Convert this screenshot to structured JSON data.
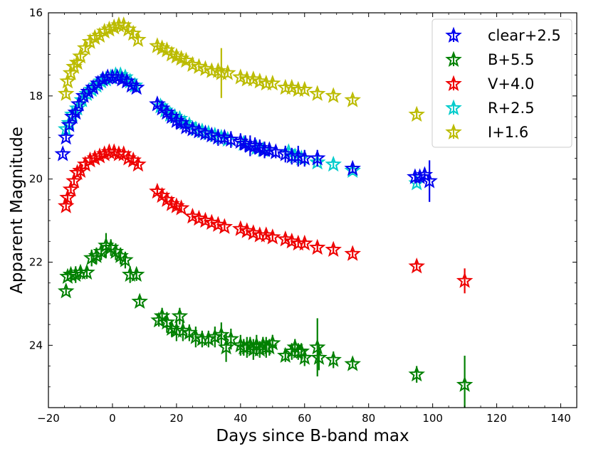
{
  "chart_data": {
    "type": "scatter",
    "title": "",
    "xlabel": "Days since B-band max",
    "ylabel": "Apparent Magnitude",
    "xlim": [
      -20,
      145
    ],
    "ylim": [
      25.5,
      16
    ],
    "y_inverted": true,
    "xticks": [
      -20,
      0,
      20,
      40,
      60,
      80,
      100,
      120,
      140
    ],
    "yticks": [
      16,
      18,
      20,
      22,
      24
    ],
    "grid": false,
    "legend_position": "top-right",
    "marker": "star",
    "series": [
      {
        "name": "clear+2.5",
        "color": "#0000ee",
        "points": [
          [
            -15.5,
            19.4,
            0.08
          ],
          [
            -14.5,
            19.0,
            0.1
          ],
          [
            -13.5,
            18.7,
            0.1
          ],
          [
            -12.5,
            18.5,
            0.1
          ],
          [
            -11.5,
            18.4,
            0.1
          ],
          [
            -10.5,
            18.2,
            0.1
          ],
          [
            -9,
            18.0,
            0.08
          ],
          [
            -7.5,
            17.9,
            0.08
          ],
          [
            -6,
            17.8,
            0.08
          ],
          [
            -4.5,
            17.7,
            0.08
          ],
          [
            -3,
            17.6,
            0.08
          ],
          [
            -1.5,
            17.55,
            0.08
          ],
          [
            0,
            17.55,
            0.08
          ],
          [
            1.5,
            17.55,
            0.08
          ],
          [
            3,
            17.6,
            0.08
          ],
          [
            4.5,
            17.65,
            0.08
          ],
          [
            6,
            17.75,
            0.08
          ],
          [
            7.5,
            17.8,
            0.1
          ],
          [
            14,
            18.2,
            0.1
          ],
          [
            15.5,
            18.3,
            0.1
          ],
          [
            17,
            18.4,
            0.15
          ],
          [
            18.5,
            18.5,
            0.15
          ],
          [
            20,
            18.6,
            0.2
          ],
          [
            21.5,
            18.65,
            0.15
          ],
          [
            23,
            18.75,
            0.15
          ],
          [
            25,
            18.8,
            0.15
          ],
          [
            27,
            18.85,
            0.15
          ],
          [
            29,
            18.9,
            0.15
          ],
          [
            31,
            18.95,
            0.15
          ],
          [
            33,
            19.0,
            0.2
          ],
          [
            35,
            19.0,
            0.15
          ],
          [
            37,
            19.05,
            0.2
          ],
          [
            40,
            19.1,
            0.2
          ],
          [
            41.5,
            19.15,
            0.2
          ],
          [
            43,
            19.2,
            0.25
          ],
          [
            44.5,
            19.2,
            0.2
          ],
          [
            46,
            19.25,
            0.2
          ],
          [
            47.5,
            19.3,
            0.2
          ],
          [
            49,
            19.3,
            0.15
          ],
          [
            51,
            19.35,
            0.15
          ],
          [
            54,
            19.4,
            0.2
          ],
          [
            56,
            19.45,
            0.2
          ],
          [
            58,
            19.45,
            0.25
          ],
          [
            60,
            19.5,
            0.2
          ],
          [
            64,
            19.5,
            0.2
          ],
          [
            75,
            19.75,
            0.1
          ],
          [
            94.5,
            19.95,
            0.15
          ],
          [
            96,
            19.95,
            0.15
          ],
          [
            97.5,
            19.9,
            0.15
          ],
          [
            99,
            20.05,
            0.5
          ]
        ]
      },
      {
        "name": "B+5.5",
        "color": "#008000",
        "points": [
          [
            -14.5,
            22.7,
            0.1
          ],
          [
            -14,
            22.35,
            0.1
          ],
          [
            -13,
            22.3,
            0.15
          ],
          [
            -11.5,
            22.3,
            0.2
          ],
          [
            -10,
            22.25,
            0.15
          ],
          [
            -8,
            22.25,
            0.15
          ],
          [
            -6.5,
            21.9,
            0.2
          ],
          [
            -5,
            21.85,
            0.2
          ],
          [
            -3.5,
            21.75,
            0.2
          ],
          [
            -2,
            21.6,
            0.3
          ],
          [
            -0.5,
            21.65,
            0.2
          ],
          [
            1,
            21.75,
            0.2
          ],
          [
            2.5,
            21.85,
            0.2
          ],
          [
            4,
            21.95,
            0.2
          ],
          [
            5.5,
            22.3,
            0.2
          ],
          [
            7.5,
            22.3,
            0.15
          ],
          [
            8.5,
            22.95,
            0.1
          ],
          [
            14.5,
            23.4,
            0.15
          ],
          [
            15.5,
            23.3,
            0.2
          ],
          [
            17,
            23.45,
            0.25
          ],
          [
            18.5,
            23.6,
            0.2
          ],
          [
            20,
            23.65,
            0.25
          ],
          [
            21,
            23.3,
            0.2
          ],
          [
            22,
            23.65,
            0.25
          ],
          [
            24,
            23.7,
            0.2
          ],
          [
            26,
            23.8,
            0.25
          ],
          [
            28,
            23.85,
            0.2
          ],
          [
            30,
            23.85,
            0.2
          ],
          [
            32,
            23.8,
            0.25
          ],
          [
            34,
            23.75,
            0.3
          ],
          [
            35.5,
            24.05,
            0.35
          ],
          [
            37,
            23.85,
            0.25
          ],
          [
            40,
            24.0,
            0.25
          ],
          [
            41,
            24.05,
            0.2
          ],
          [
            42,
            24.05,
            0.25
          ],
          [
            43,
            24.0,
            0.2
          ],
          [
            44,
            24.1,
            0.25
          ],
          [
            45,
            24.0,
            0.25
          ],
          [
            46,
            24.1,
            0.2
          ],
          [
            47,
            24.0,
            0.2
          ],
          [
            48,
            24.05,
            0.25
          ],
          [
            49,
            24.05,
            0.2
          ],
          [
            50,
            23.95,
            0.2
          ],
          [
            54,
            24.25,
            0.15
          ],
          [
            56,
            24.15,
            0.2
          ],
          [
            57,
            24.05,
            0.2
          ],
          [
            58,
            24.15,
            0.2
          ],
          [
            59,
            24.15,
            0.2
          ],
          [
            60,
            24.3,
            0.2
          ],
          [
            64,
            24.05,
            0.7
          ],
          [
            64.5,
            24.3,
            0.3
          ],
          [
            69,
            24.35,
            0.2
          ],
          [
            75,
            24.45,
            0.1
          ],
          [
            95,
            24.7,
            0.2
          ],
          [
            110,
            24.95,
            0.7
          ]
        ]
      },
      {
        "name": "V+4.0",
        "color": "#ee0000",
        "points": [
          [
            -14.5,
            20.65,
            0.1
          ],
          [
            -14,
            20.45,
            0.1
          ],
          [
            -13,
            20.25,
            0.1
          ],
          [
            -12,
            20.05,
            0.1
          ],
          [
            -11,
            19.85,
            0.1
          ],
          [
            -10,
            19.8,
            0.1
          ],
          [
            -8.5,
            19.65,
            0.1
          ],
          [
            -7,
            19.55,
            0.1
          ],
          [
            -5.5,
            19.5,
            0.1
          ],
          [
            -4,
            19.45,
            0.1
          ],
          [
            -2.5,
            19.4,
            0.1
          ],
          [
            -1,
            19.35,
            0.1
          ],
          [
            0.5,
            19.35,
            0.1
          ],
          [
            2,
            19.4,
            0.1
          ],
          [
            3.5,
            19.4,
            0.1
          ],
          [
            5,
            19.5,
            0.1
          ],
          [
            6.5,
            19.55,
            0.1
          ],
          [
            8,
            19.65,
            0.1
          ],
          [
            14,
            20.3,
            0.1
          ],
          [
            15.5,
            20.4,
            0.1
          ],
          [
            17,
            20.5,
            0.1
          ],
          [
            18.5,
            20.6,
            0.1
          ],
          [
            20,
            20.65,
            0.1
          ],
          [
            21.5,
            20.7,
            0.1
          ],
          [
            25,
            20.9,
            0.1
          ],
          [
            27,
            20.95,
            0.1
          ],
          [
            29,
            21.0,
            0.1
          ],
          [
            31,
            21.05,
            0.1
          ],
          [
            33,
            21.1,
            0.1
          ],
          [
            35,
            21.15,
            0.1
          ],
          [
            40,
            21.2,
            0.1
          ],
          [
            42,
            21.25,
            0.1
          ],
          [
            44,
            21.3,
            0.1
          ],
          [
            46,
            21.35,
            0.1
          ],
          [
            48,
            21.35,
            0.1
          ],
          [
            50,
            21.4,
            0.1
          ],
          [
            54,
            21.45,
            0.1
          ],
          [
            56,
            21.5,
            0.1
          ],
          [
            58,
            21.55,
            0.1
          ],
          [
            60,
            21.55,
            0.1
          ],
          [
            64,
            21.65,
            0.1
          ],
          [
            69,
            21.7,
            0.1
          ],
          [
            75,
            21.8,
            0.1
          ],
          [
            95,
            22.1,
            0.1
          ],
          [
            110,
            22.45,
            0.3
          ]
        ]
      },
      {
        "name": "R+2.5",
        "color": "#00cccc",
        "points": [
          [
            -14.5,
            18.8,
            0.1
          ],
          [
            -13.5,
            18.65,
            0.1
          ],
          [
            -12.5,
            18.45,
            0.1
          ],
          [
            -11,
            18.3,
            0.1
          ],
          [
            -9.5,
            18.1,
            0.1
          ],
          [
            -8,
            17.95,
            0.1
          ],
          [
            -6.5,
            17.85,
            0.1
          ],
          [
            -5,
            17.75,
            0.1
          ],
          [
            -3.5,
            17.65,
            0.1
          ],
          [
            -2,
            17.6,
            0.1
          ],
          [
            -0.5,
            17.55,
            0.1
          ],
          [
            1,
            17.5,
            0.1
          ],
          [
            2.5,
            17.5,
            0.1
          ],
          [
            4,
            17.55,
            0.1
          ],
          [
            5.5,
            17.65,
            0.1
          ],
          [
            7,
            17.75,
            0.1
          ],
          [
            15,
            18.25,
            0.1
          ],
          [
            16.5,
            18.35,
            0.1
          ],
          [
            18,
            18.45,
            0.1
          ],
          [
            19.5,
            18.5,
            0.1
          ],
          [
            21,
            18.55,
            0.1
          ],
          [
            22.5,
            18.65,
            0.1
          ],
          [
            24,
            18.7,
            0.1
          ],
          [
            26,
            18.8,
            0.1
          ],
          [
            28,
            18.85,
            0.1
          ],
          [
            30,
            18.9,
            0.1
          ],
          [
            32,
            18.95,
            0.1
          ],
          [
            34,
            19.0,
            0.1
          ],
          [
            36,
            19.05,
            0.1
          ],
          [
            41,
            19.15,
            0.1
          ],
          [
            43,
            19.2,
            0.1
          ],
          [
            45,
            19.25,
            0.1
          ],
          [
            47,
            19.3,
            0.1
          ],
          [
            49,
            19.3,
            0.1
          ],
          [
            55,
            19.35,
            0.1
          ],
          [
            57,
            19.45,
            0.1
          ],
          [
            59,
            19.5,
            0.1
          ],
          [
            64,
            19.6,
            0.1
          ],
          [
            69,
            19.65,
            0.1
          ],
          [
            75,
            19.8,
            0.1
          ],
          [
            95,
            20.1,
            0.1
          ]
        ]
      },
      {
        "name": "I+1.6",
        "color": "#bbbb00",
        "points": [
          [
            -14.5,
            17.95,
            0.1
          ],
          [
            -14,
            17.65,
            0.1
          ],
          [
            -13,
            17.45,
            0.1
          ],
          [
            -12,
            17.3,
            0.1
          ],
          [
            -11,
            17.2,
            0.1
          ],
          [
            -10,
            17.05,
            0.1
          ],
          [
            -8.5,
            16.85,
            0.1
          ],
          [
            -7,
            16.7,
            0.1
          ],
          [
            -5.5,
            16.6,
            0.1
          ],
          [
            -4,
            16.55,
            0.1
          ],
          [
            -2.5,
            16.45,
            0.1
          ],
          [
            -1,
            16.4,
            0.1
          ],
          [
            0.5,
            16.35,
            0.1
          ],
          [
            2,
            16.3,
            0.1
          ],
          [
            3.5,
            16.3,
            0.1
          ],
          [
            5,
            16.4,
            0.1
          ],
          [
            6.5,
            16.5,
            0.1
          ],
          [
            8,
            16.65,
            0.1
          ],
          [
            14,
            16.8,
            0.1
          ],
          [
            15.5,
            16.85,
            0.1
          ],
          [
            17,
            16.9,
            0.1
          ],
          [
            18.5,
            17.0,
            0.1
          ],
          [
            20,
            17.05,
            0.1
          ],
          [
            21.5,
            17.1,
            0.1
          ],
          [
            23,
            17.15,
            0.1
          ],
          [
            25,
            17.25,
            0.1
          ],
          [
            27,
            17.3,
            0.1
          ],
          [
            29,
            17.35,
            0.1
          ],
          [
            31,
            17.4,
            0.1
          ],
          [
            33,
            17.4,
            0.1
          ],
          [
            34,
            17.45,
            0.6
          ],
          [
            36,
            17.45,
            0.1
          ],
          [
            40,
            17.55,
            0.1
          ],
          [
            42,
            17.6,
            0.1
          ],
          [
            44,
            17.6,
            0.1
          ],
          [
            46,
            17.65,
            0.1
          ],
          [
            48,
            17.7,
            0.1
          ],
          [
            50,
            17.7,
            0.1
          ],
          [
            54,
            17.8,
            0.1
          ],
          [
            56,
            17.8,
            0.1
          ],
          [
            58,
            17.85,
            0.1
          ],
          [
            60,
            17.85,
            0.1
          ],
          [
            64,
            17.95,
            0.1
          ],
          [
            69,
            18.0,
            0.1
          ],
          [
            75,
            18.1,
            0.1
          ],
          [
            95,
            18.45,
            0.1
          ]
        ]
      }
    ]
  }
}
